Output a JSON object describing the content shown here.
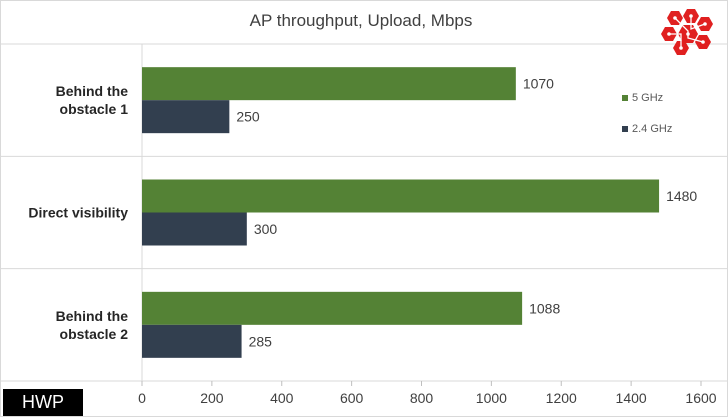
{
  "chart_data": {
    "type": "bar",
    "orientation": "horizontal",
    "title": "AP throughput, Upload, Mbps",
    "categories": [
      "Behind the obstacle 1",
      "Direct visibility",
      "Behind the obstacle 2"
    ],
    "category_lines": [
      [
        "Behind the",
        "obstacle 1"
      ],
      [
        "Direct visibility"
      ],
      [
        "Behind the",
        "obstacle 2"
      ]
    ],
    "series": [
      {
        "name": "5 GHz",
        "color": "#548235",
        "values": [
          1070,
          1480,
          1088
        ]
      },
      {
        "name": "2.4 GHz",
        "color": "#323f4f",
        "values": [
          250,
          300,
          285
        ]
      }
    ],
    "xlim": [
      0,
      1600
    ],
    "xticks": [
      0,
      200,
      400,
      600,
      800,
      1000,
      1200,
      1400,
      1600
    ],
    "grid": "horizontal separators between categories",
    "legend_position": "top-right"
  },
  "watermark": {
    "label": "HWP"
  },
  "logo": {
    "icon": "hexagon-network-logo-icon",
    "color": "#e02020"
  }
}
